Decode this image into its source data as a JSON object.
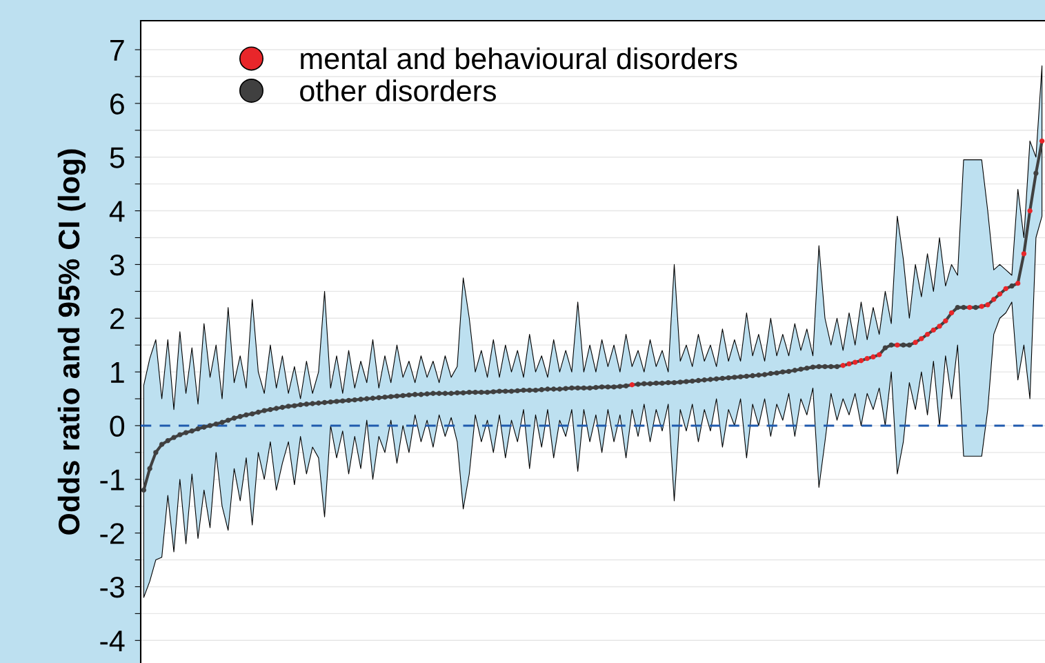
{
  "chart_data": {
    "type": "scatter",
    "ylabel": "Odds ratio and 95% CI (log)",
    "categories": [
      null,
      null,
      null,
      null,
      null,
      null,
      null,
      null,
      null,
      null,
      null,
      null,
      null,
      null,
      null,
      null,
      null,
      null,
      null,
      null,
      null,
      null,
      null,
      null,
      null,
      null,
      null,
      null,
      null,
      null,
      null,
      null,
      null,
      null,
      null,
      null,
      null,
      null,
      null,
      null,
      null,
      null,
      null,
      null,
      null,
      null,
      null,
      null,
      null,
      null,
      null,
      null,
      null,
      null,
      null,
      null,
      null,
      null,
      null,
      null,
      null,
      null,
      null,
      null,
      null,
      null,
      null,
      null,
      null,
      null,
      null,
      null,
      null,
      null,
      null,
      null,
      null,
      null,
      null,
      null,
      null,
      null,
      null,
      null,
      null,
      null,
      null,
      null,
      null,
      null,
      null,
      null,
      null,
      null,
      null,
      null,
      null,
      null,
      null,
      null,
      null,
      null,
      null,
      null,
      null,
      null,
      null,
      null,
      null,
      null,
      null,
      null,
      null,
      null,
      null,
      null,
      null,
      null,
      null,
      null,
      null,
      null,
      null,
      null,
      null,
      null,
      null,
      null,
      null,
      null,
      null,
      null,
      null,
      null,
      null,
      null,
      null,
      null,
      null,
      null,
      null,
      null,
      null,
      null,
      null,
      null,
      null,
      null,
      null,
      null
    ],
    "ylim": [
      -4.42,
      7.54
    ],
    "yticks": [
      -4,
      {
        "value": -3.5,
        "label": null
      },
      -3,
      {
        "value": -2.5,
        "label": null
      },
      -2,
      {
        "value": -1.5,
        "label": null
      },
      -1,
      {
        "value": -0.5,
        "label": null
      },
      0,
      {
        "value": 0.5,
        "label": null
      },
      1,
      {
        "value": 1.5,
        "label": null
      },
      2,
      {
        "value": 2.5,
        "label": null
      },
      3,
      {
        "value": 3.5,
        "label": null
      },
      4,
      {
        "value": 4.5,
        "label": null
      },
      5,
      {
        "value": 5.5,
        "label": null
      },
      6,
      {
        "value": 6.5,
        "label": null
      },
      7
    ],
    "grid": "y",
    "legend": "top left",
    "marker": "circle",
    "tick_labels": "y",
    "ref_lines": [
      {
        "axis": "y",
        "value": 0,
        "color": "#1f5aad",
        "line_style": "dashed"
      }
    ],
    "series": [
      {
        "type": "line",
        "color": "#404040",
        "marker": "none",
        "values": [
          -1.2,
          -0.8,
          -0.5,
          -0.35,
          -0.28,
          -0.22,
          -0.17,
          -0.13,
          -0.1,
          -0.06,
          -0.03,
          0.0,
          0.03,
          0.06,
          0.1,
          0.14,
          0.17,
          0.2,
          0.22,
          0.25,
          0.28,
          0.3,
          0.32,
          0.34,
          0.36,
          0.37,
          0.39,
          0.4,
          0.41,
          0.42,
          0.43,
          0.44,
          0.45,
          0.46,
          0.47,
          0.48,
          0.49,
          0.5,
          0.51,
          0.52,
          0.53,
          0.54,
          0.55,
          0.56,
          0.57,
          0.58,
          0.58,
          0.59,
          0.6,
          0.6,
          0.6,
          0.6,
          0.61,
          0.61,
          0.62,
          0.62,
          0.62,
          0.62,
          0.63,
          0.64,
          0.64,
          0.64,
          0.65,
          0.66,
          0.66,
          0.66,
          0.67,
          0.68,
          0.68,
          0.68,
          0.69,
          0.7,
          0.7,
          0.7,
          0.7,
          0.71,
          0.72,
          0.72,
          0.72,
          0.73,
          0.74,
          0.76,
          0.77,
          0.78,
          0.78,
          0.79,
          0.79,
          0.8,
          0.8,
          0.81,
          0.82,
          0.83,
          0.84,
          0.85,
          0.86,
          0.87,
          0.88,
          0.89,
          0.9,
          0.91,
          0.92,
          0.93,
          0.94,
          0.95,
          0.97,
          0.98,
          1.0,
          1.01,
          1.03,
          1.05,
          1.07,
          1.09,
          1.1,
          1.1,
          1.1,
          1.1,
          1.12,
          1.15,
          1.18,
          1.21,
          1.25,
          1.28,
          1.32,
          1.45,
          1.5,
          1.5,
          1.5,
          1.5,
          1.55,
          1.62,
          1.7,
          1.78,
          1.85,
          1.95,
          2.1,
          2.2,
          2.2,
          2.2,
          2.2,
          2.22,
          2.25,
          2.35,
          2.45,
          2.55,
          2.6,
          2.65,
          3.2,
          4.0,
          4.7,
          5.3
        ],
        "upper": [
          0.75,
          1.25,
          1.6,
          0.5,
          1.6,
          0.3,
          1.75,
          0.6,
          1.45,
          0.4,
          1.9,
          0.9,
          1.5,
          0.5,
          2.2,
          0.8,
          1.3,
          0.7,
          2.35,
          1.0,
          0.6,
          1.5,
          0.7,
          1.3,
          0.6,
          1.1,
          0.5,
          1.2,
          0.6,
          1.0,
          2.5,
          0.7,
          1.3,
          0.6,
          1.4,
          0.7,
          1.2,
          0.8,
          1.6,
          0.7,
          1.3,
          0.8,
          1.5,
          0.9,
          1.2,
          0.8,
          1.3,
          0.9,
          1.2,
          0.8,
          1.3,
          0.9,
          1.1,
          2.75,
          2.0,
          1.0,
          1.4,
          0.9,
          1.6,
          0.9,
          1.5,
          1.0,
          1.4,
          0.9,
          1.7,
          1.0,
          1.3,
          0.9,
          1.6,
          1.0,
          1.4,
          1.0,
          2.3,
          1.0,
          1.5,
          1.0,
          1.6,
          1.1,
          1.5,
          1.0,
          1.7,
          1.1,
          1.4,
          1.0,
          1.6,
          1.1,
          1.4,
          1.0,
          3.0,
          1.2,
          1.5,
          1.1,
          1.7,
          1.2,
          1.5,
          1.1,
          1.8,
          1.2,
          1.6,
          1.2,
          2.1,
          1.3,
          1.7,
          1.2,
          2.0,
          1.3,
          1.7,
          1.3,
          1.9,
          1.4,
          1.8,
          1.3,
          3.35,
          2.0,
          1.5,
          2.0,
          1.4,
          2.1,
          1.5,
          2.3,
          1.6,
          2.2,
          1.7,
          2.5,
          1.9,
          3.9,
          3.1,
          2.0,
          3.0,
          2.4,
          3.2,
          2.5,
          3.5,
          2.6,
          3.0,
          2.8,
          4.95,
          4.95,
          4.95,
          4.95,
          4.0,
          2.9,
          3.0,
          2.9,
          2.8,
          4.4,
          3.5,
          5.3,
          5.0,
          6.7
        ],
        "lower": [
          -3.2,
          -2.9,
          -2.5,
          -2.45,
          -1.3,
          -2.35,
          -1.0,
          -2.2,
          -0.9,
          -2.1,
          -1.2,
          -1.9,
          -0.5,
          -1.5,
          -1.95,
          -0.8,
          -1.4,
          -0.6,
          -1.85,
          -0.5,
          -1.0,
          -0.3,
          -1.2,
          -0.7,
          -0.3,
          -1.1,
          -0.2,
          -0.9,
          -0.4,
          -0.6,
          -1.7,
          0.0,
          -0.6,
          -0.1,
          -0.9,
          -0.2,
          -0.8,
          0.1,
          -1.0,
          -0.2,
          -0.5,
          0.1,
          -0.7,
          0.0,
          -0.5,
          0.2,
          -0.3,
          0.1,
          -0.4,
          0.2,
          -0.2,
          0.15,
          -0.3,
          -1.55,
          -0.9,
          0.2,
          -0.3,
          0.1,
          -0.5,
          0.2,
          -0.6,
          0.1,
          -0.3,
          0.3,
          -0.8,
          0.2,
          -0.4,
          0.3,
          -0.6,
          0.1,
          -0.2,
          0.3,
          -0.85,
          0.3,
          -0.3,
          0.2,
          -0.5,
          0.3,
          -0.3,
          0.2,
          -0.6,
          0.3,
          -0.2,
          0.4,
          -0.3,
          0.3,
          -0.1,
          0.4,
          -1.4,
          0.3,
          -0.1,
          0.4,
          -0.3,
          0.3,
          -0.1,
          0.5,
          -0.4,
          0.3,
          0.0,
          0.5,
          -0.6,
          0.4,
          0.0,
          0.5,
          -0.2,
          0.4,
          0.1,
          0.6,
          -0.2,
          0.5,
          0.2,
          0.7,
          -1.15,
          -0.3,
          0.6,
          0.1,
          0.5,
          0.2,
          0.6,
          0.0,
          0.6,
          0.3,
          0.7,
          0.0,
          1.0,
          -0.9,
          -0.3,
          0.8,
          0.3,
          1.0,
          0.2,
          1.2,
          0.0,
          1.3,
          0.5,
          1.5,
          -0.57,
          -0.57,
          -0.57,
          -0.57,
          0.3,
          1.7,
          2.0,
          2.1,
          2.3,
          0.85,
          1.5,
          0.5,
          3.5,
          3.9
        ]
      },
      {
        "name": "mental and behavioural disorders",
        "color": "#e8262a",
        "values": [
          null,
          null,
          null,
          null,
          null,
          null,
          null,
          null,
          null,
          null,
          null,
          null,
          null,
          null,
          null,
          null,
          null,
          null,
          null,
          null,
          null,
          null,
          null,
          null,
          null,
          null,
          null,
          null,
          null,
          null,
          null,
          null,
          null,
          null,
          null,
          null,
          null,
          null,
          null,
          null,
          null,
          null,
          null,
          null,
          null,
          null,
          null,
          null,
          null,
          null,
          null,
          null,
          null,
          null,
          null,
          null,
          null,
          null,
          null,
          null,
          null,
          null,
          null,
          null,
          null,
          null,
          null,
          null,
          null,
          null,
          null,
          null,
          null,
          null,
          null,
          null,
          null,
          null,
          null,
          null,
          null,
          0.76,
          null,
          null,
          null,
          null,
          null,
          null,
          null,
          null,
          null,
          null,
          null,
          null,
          null,
          null,
          null,
          null,
          null,
          null,
          null,
          null,
          null,
          null,
          null,
          null,
          null,
          null,
          null,
          null,
          null,
          null,
          null,
          null,
          null,
          null,
          1.12,
          1.15,
          1.18,
          1.21,
          1.25,
          1.28,
          1.32,
          null,
          null,
          1.5,
          null,
          null,
          1.55,
          1.62,
          1.7,
          1.78,
          1.85,
          1.95,
          2.1,
          null,
          null,
          2.2,
          null,
          2.22,
          2.25,
          2.35,
          2.45,
          2.55,
          null,
          2.65,
          3.2,
          4.0,
          null,
          5.3
        ]
      },
      {
        "name": "other disorders",
        "color": "#404040",
        "values": [
          -1.2,
          -0.8,
          -0.5,
          -0.35,
          -0.28,
          -0.22,
          -0.17,
          -0.13,
          -0.1,
          -0.06,
          -0.03,
          0.0,
          0.03,
          0.06,
          0.1,
          0.14,
          0.17,
          0.2,
          0.22,
          0.25,
          0.28,
          0.3,
          0.32,
          0.34,
          0.36,
          0.37,
          0.39,
          0.4,
          0.41,
          0.42,
          0.43,
          0.44,
          0.45,
          0.46,
          0.47,
          0.48,
          0.49,
          0.5,
          0.51,
          0.52,
          0.53,
          0.54,
          0.55,
          0.56,
          0.57,
          0.58,
          0.58,
          0.59,
          0.6,
          0.6,
          0.6,
          0.6,
          0.61,
          0.61,
          0.62,
          0.62,
          0.62,
          0.62,
          0.63,
          0.64,
          0.64,
          0.64,
          0.65,
          0.66,
          0.66,
          0.66,
          0.67,
          0.68,
          0.68,
          0.68,
          0.69,
          0.7,
          0.7,
          0.7,
          0.7,
          0.71,
          0.72,
          0.72,
          0.72,
          0.73,
          0.74,
          null,
          0.77,
          0.78,
          0.78,
          0.79,
          0.79,
          0.8,
          0.8,
          0.81,
          0.82,
          0.83,
          0.84,
          0.85,
          0.86,
          0.87,
          0.88,
          0.89,
          0.9,
          0.91,
          0.92,
          0.93,
          0.94,
          0.95,
          0.97,
          0.98,
          1.0,
          1.01,
          1.03,
          1.05,
          1.07,
          1.09,
          1.1,
          1.1,
          1.1,
          1.1,
          null,
          null,
          null,
          null,
          null,
          null,
          null,
          1.45,
          1.5,
          null,
          1.5,
          1.5,
          null,
          null,
          null,
          null,
          null,
          null,
          null,
          2.2,
          2.2,
          null,
          2.2,
          null,
          null,
          null,
          null,
          null,
          2.6,
          null,
          null,
          null,
          4.7,
          null
        ]
      }
    ]
  }
}
